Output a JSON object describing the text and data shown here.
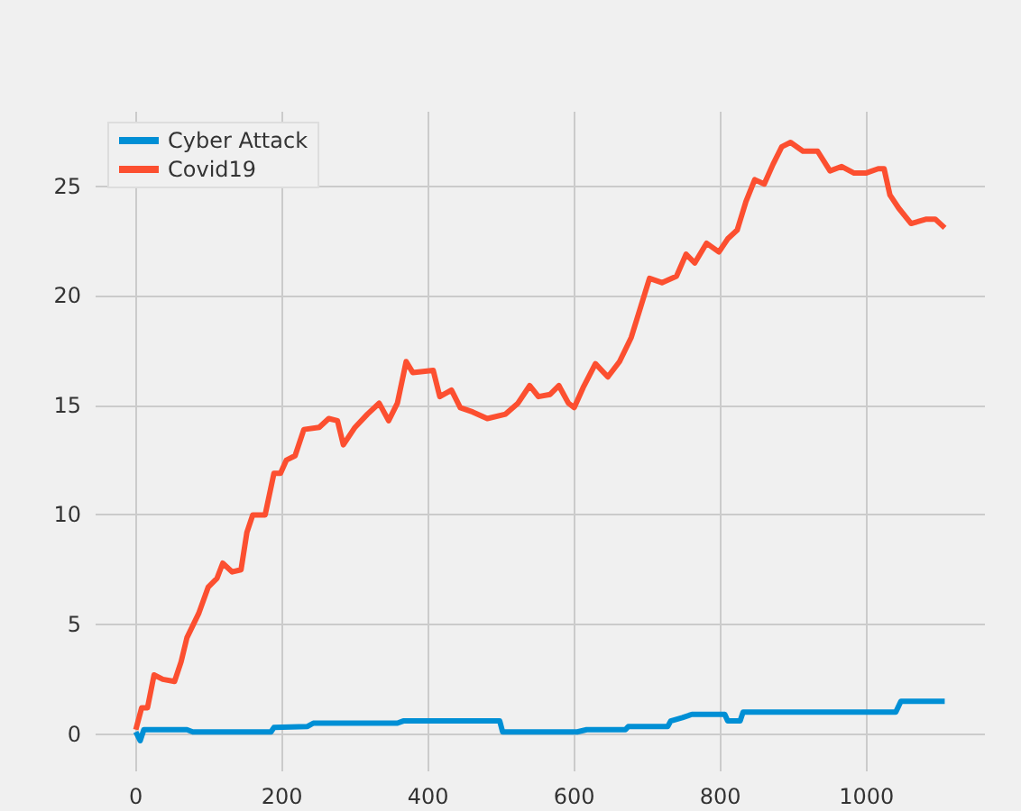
{
  "chart_data": {
    "type": "line",
    "xlim": [
      -55,
      1162
    ],
    "xticks": [
      0,
      200,
      400,
      600,
      800,
      1000
    ],
    "ylim": [
      -1.7,
      28.4
    ],
    "yticks": [
      0,
      5,
      10,
      15,
      20,
      25
    ],
    "grid": true,
    "legend": "top left",
    "marker": "none",
    "line_style": "solid",
    "series": [
      {
        "name": "Cyber Attack",
        "color": "#008fd5",
        "x": [
          0,
          6,
          11,
          70,
          78,
          185,
          189,
          235,
          243,
          358,
          366,
          498,
          502,
          530,
          604,
          617,
          670,
          674,
          728,
          732,
          748,
          761,
          806,
          810,
          827,
          831,
          1040,
          1047,
          1107
        ],
        "values": [
          0.1,
          -0.3,
          0.2,
          0.2,
          0.1,
          0.1,
          0.3,
          0.35,
          0.5,
          0.5,
          0.6,
          0.6,
          0.1,
          0.1,
          0.1,
          0.2,
          0.2,
          0.35,
          0.35,
          0.6,
          0.75,
          0.9,
          0.9,
          0.6,
          0.6,
          1.0,
          1.0,
          1.5,
          1.5
        ]
      },
      {
        "name": "Covid19",
        "color": "#fc4f30",
        "x": [
          0,
          8,
          16,
          25,
          37,
          53,
          62,
          70,
          86,
          99,
          111,
          119,
          132,
          144,
          152,
          160,
          177,
          189,
          198,
          206,
          218,
          230,
          251,
          264,
          276,
          284,
          300,
          317,
          333,
          346,
          358,
          370,
          379,
          407,
          416,
          432,
          444,
          461,
          481,
          506,
          523,
          539,
          551,
          567,
          579,
          592,
          600,
          612,
          629,
          646,
          662,
          678,
          691,
          703,
          720,
          740,
          753,
          765,
          781,
          798,
          810,
          823,
          835,
          847,
          860,
          872,
          884,
          896,
          913,
          933,
          950,
          966,
          983,
          999,
          1016,
          1024,
          1032,
          1044,
          1061,
          1082,
          1094,
          1107
        ],
        "values": [
          0.2,
          1.2,
          1.2,
          2.7,
          2.5,
          2.4,
          3.3,
          4.4,
          5.5,
          6.7,
          7.1,
          7.8,
          7.4,
          7.5,
          9.2,
          10.0,
          10.0,
          11.9,
          11.9,
          12.5,
          12.7,
          13.9,
          14.0,
          14.4,
          14.3,
          13.2,
          14.0,
          14.6,
          15.1,
          14.3,
          15.1,
          17.0,
          16.5,
          16.6,
          15.4,
          15.7,
          14.9,
          14.7,
          14.4,
          14.6,
          15.1,
          15.9,
          15.4,
          15.5,
          15.9,
          15.1,
          14.9,
          15.8,
          16.9,
          16.3,
          17.0,
          18.1,
          19.5,
          20.8,
          20.6,
          20.9,
          21.9,
          21.5,
          22.4,
          22.0,
          22.6,
          23.0,
          24.3,
          25.3,
          25.1,
          26.0,
          26.8,
          27.0,
          26.6,
          26.6,
          25.7,
          25.9,
          25.6,
          25.6,
          25.8,
          25.8,
          24.6,
          24.0,
          23.3,
          23.5,
          23.5,
          23.1
        ]
      }
    ]
  }
}
